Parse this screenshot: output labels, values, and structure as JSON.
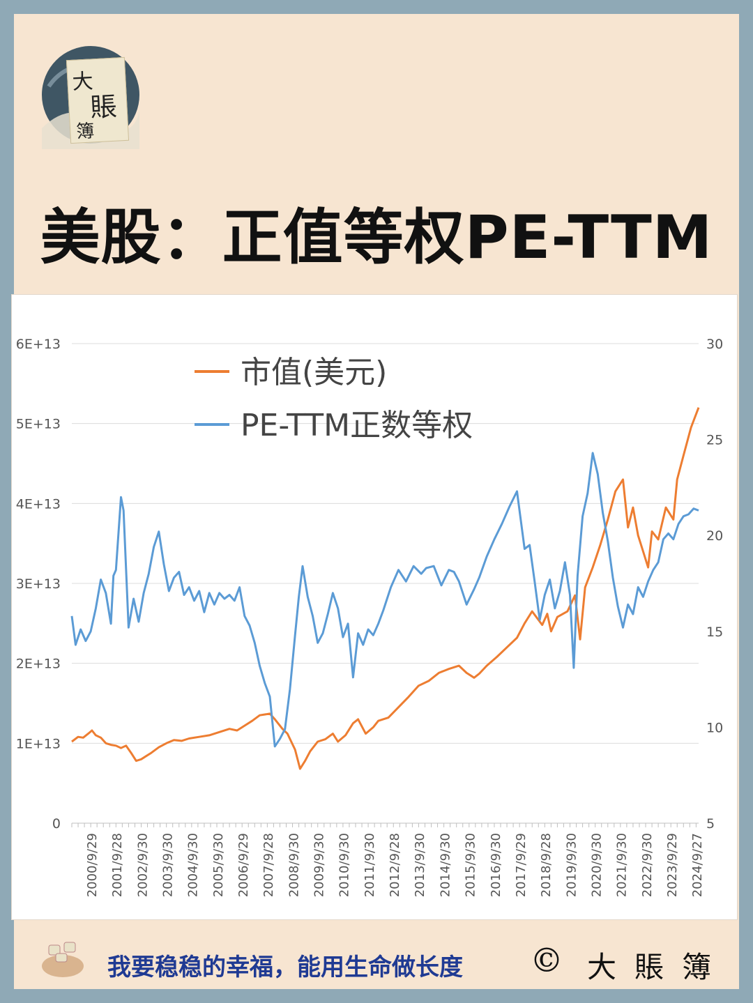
{
  "logo": {
    "chars": [
      "大",
      "賬",
      "簿"
    ]
  },
  "title": "美股：正值等权PE-TTM",
  "chart_data": {
    "type": "line",
    "title": "",
    "xlabel": "",
    "ylabel": "",
    "y_left": {
      "ticks": [
        "0",
        "1E+13",
        "2E+13",
        "3E+13",
        "4E+13",
        "5E+13",
        "6E+13"
      ],
      "range": [
        0,
        60000000000000.0
      ]
    },
    "y_right": {
      "ticks": [
        "5",
        "10",
        "15",
        "20",
        "25",
        "30"
      ],
      "range": [
        5,
        30
      ]
    },
    "categories": [
      "2000/9/29",
      "2001/9/28",
      "2002/9/30",
      "2003/9/30",
      "2004/9/30",
      "2005/9/30",
      "2006/9/29",
      "2007/9/28",
      "2008/9/30",
      "2009/9/30",
      "2010/9/30",
      "2011/9/30",
      "2012/9/28",
      "2013/9/30",
      "2014/9/30",
      "2015/9/30",
      "2016/9/30",
      "2017/9/29",
      "2018/9/28",
      "2019/9/30",
      "2020/9/30",
      "2021/9/30",
      "2022/9/30",
      "2023/9/29",
      "2024/9/27"
    ],
    "x_range": [
      1999.95,
      2024.8
    ],
    "legend_position": "top-center",
    "grid": true,
    "series": [
      {
        "name": "市值(美元)",
        "axis": "left",
        "color": "#ed7d31",
        "x": [
          1999.95,
          2000.2,
          2000.4,
          2000.6,
          2000.75,
          2000.9,
          2001.1,
          2001.3,
          2001.5,
          2001.7,
          2001.9,
          2002.1,
          2002.3,
          2002.5,
          2002.7,
          2002.9,
          2003.1,
          2003.4,
          2003.7,
          2004.0,
          2004.3,
          2004.6,
          2005.0,
          2005.4,
          2005.8,
          2006.2,
          2006.5,
          2006.8,
          2007.1,
          2007.4,
          2007.8,
          2008.0,
          2008.3,
          2008.5,
          2008.8,
          2009.0,
          2009.2,
          2009.4,
          2009.7,
          2010.0,
          2010.3,
          2010.5,
          2010.8,
          2011.1,
          2011.3,
          2011.6,
          2011.9,
          2012.1,
          2012.5,
          2012.9,
          2013.3,
          2013.7,
          2014.1,
          2014.5,
          2014.9,
          2015.3,
          2015.6,
          2015.9,
          2016.1,
          2016.4,
          2016.8,
          2017.2,
          2017.6,
          2017.9,
          2018.2,
          2018.6,
          2018.8,
          2018.95,
          2019.2,
          2019.6,
          2019.9,
          2020.1,
          2020.3,
          2020.6,
          2020.9,
          2021.2,
          2021.5,
          2021.8,
          2022.0,
          2022.2,
          2022.4,
          2022.6,
          2022.8,
          2022.95,
          2023.2,
          2023.5,
          2023.8,
          2023.95,
          2024.2,
          2024.5,
          2024.8
        ],
        "values": [
          10200000000000.0,
          10800000000000.0,
          10700000000000.0,
          11200000000000.0,
          11600000000000.0,
          11000000000000.0,
          10700000000000.0,
          10000000000000.0,
          9800000000000.0,
          9700000000000.0,
          9400000000000.0,
          9700000000000.0,
          8800000000000.0,
          7800000000000.0,
          8000000000000.0,
          8400000000000.0,
          8800000000000.0,
          9500000000000.0,
          10000000000000.0,
          10400000000000.0,
          10300000000000.0,
          10600000000000.0,
          10800000000000.0,
          11000000000000.0,
          11400000000000.0,
          11800000000000.0,
          11600000000000.0,
          12200000000000.0,
          12800000000000.0,
          13500000000000.0,
          13700000000000.0,
          13000000000000.0,
          11800000000000.0,
          11200000000000.0,
          9200000000000.0,
          6800000000000.0,
          7800000000000.0,
          9000000000000.0,
          10200000000000.0,
          10500000000000.0,
          11200000000000.0,
          10200000000000.0,
          11000000000000.0,
          12500000000000.0,
          13000000000000.0,
          11200000000000.0,
          12000000000000.0,
          12800000000000.0,
          13200000000000.0,
          14500000000000.0,
          15800000000000.0,
          17200000000000.0,
          17800000000000.0,
          18800000000000.0,
          19300000000000.0,
          19700000000000.0,
          18800000000000.0,
          18200000000000.0,
          18700000000000.0,
          19700000000000.0,
          20800000000000.0,
          22000000000000.0,
          23200000000000.0,
          25000000000000.0,
          26500000000000.0,
          24800000000000.0,
          26200000000000.0,
          24000000000000.0,
          25800000000000.0,
          26500000000000.0,
          28500000000000.0,
          23000000000000.0,
          29500000000000.0,
          32000000000000.0,
          34800000000000.0,
          38000000000000.0,
          41500000000000.0,
          43000000000000.0,
          37000000000000.0,
          39500000000000.0,
          36000000000000.0,
          34000000000000.0,
          32000000000000.0,
          36500000000000.0,
          35500000000000.0,
          39500000000000.0,
          38000000000000.0,
          43000000000000.0,
          46000000000000.0,
          49500000000000.0,
          52000000000000.0
        ]
      },
      {
        "name": "PE-TTM正数等权",
        "axis": "right",
        "color": "#5b9bd5",
        "x": [
          1999.95,
          2000.1,
          2000.3,
          2000.5,
          2000.7,
          2000.9,
          2001.1,
          2001.3,
          2001.5,
          2001.6,
          2001.7,
          2001.9,
          2002.0,
          2002.2,
          2002.4,
          2002.6,
          2002.8,
          2003.0,
          2003.2,
          2003.4,
          2003.6,
          2003.8,
          2004.0,
          2004.2,
          2004.4,
          2004.6,
          2004.8,
          2005.0,
          2005.2,
          2005.4,
          2005.6,
          2005.8,
          2006.0,
          2006.2,
          2006.4,
          2006.6,
          2006.8,
          2007.0,
          2007.2,
          2007.4,
          2007.6,
          2007.8,
          2008.0,
          2008.2,
          2008.4,
          2008.6,
          2008.8,
          2008.95,
          2009.1,
          2009.3,
          2009.5,
          2009.7,
          2009.9,
          2010.1,
          2010.3,
          2010.5,
          2010.7,
          2010.9,
          2011.1,
          2011.3,
          2011.5,
          2011.7,
          2011.9,
          2012.1,
          2012.3,
          2012.6,
          2012.9,
          2013.2,
          2013.5,
          2013.8,
          2014.0,
          2014.3,
          2014.6,
          2014.9,
          2015.1,
          2015.3,
          2015.6,
          2015.9,
          2016.1,
          2016.4,
          2016.7,
          2017.0,
          2017.3,
          2017.6,
          2017.9,
          2018.1,
          2018.3,
          2018.5,
          2018.7,
          2018.9,
          2019.1,
          2019.3,
          2019.5,
          2019.7,
          2019.85,
          2020.0,
          2020.2,
          2020.4,
          2020.6,
          2020.8,
          2021.0,
          2021.2,
          2021.4,
          2021.6,
          2021.8,
          2022.0,
          2022.2,
          2022.4,
          2022.6,
          2022.8,
          2023.0,
          2023.2,
          2023.4,
          2023.6,
          2023.8,
          2024.0,
          2024.2,
          2024.4,
          2024.6,
          2024.8
        ],
        "values": [
          15.8,
          14.3,
          15.1,
          14.5,
          15.0,
          16.2,
          17.7,
          17.0,
          15.4,
          17.9,
          18.2,
          22.0,
          21.3,
          15.2,
          16.7,
          15.5,
          17.0,
          18.0,
          19.4,
          20.2,
          18.5,
          17.1,
          17.8,
          18.1,
          16.9,
          17.3,
          16.6,
          17.1,
          16.0,
          17.0,
          16.4,
          17.0,
          16.7,
          16.9,
          16.6,
          17.3,
          15.8,
          15.3,
          14.4,
          13.2,
          12.3,
          11.6,
          9.0,
          9.4,
          9.9,
          12.0,
          14.8,
          16.8,
          18.4,
          16.8,
          15.8,
          14.4,
          14.9,
          15.9,
          17.0,
          16.2,
          14.7,
          15.4,
          12.6,
          14.9,
          14.3,
          15.1,
          14.8,
          15.4,
          16.1,
          17.3,
          18.2,
          17.6,
          18.4,
          18.0,
          18.3,
          18.4,
          17.4,
          18.2,
          18.1,
          17.6,
          16.4,
          17.2,
          17.8,
          18.9,
          19.8,
          20.6,
          21.5,
          22.3,
          19.3,
          19.5,
          17.6,
          15.6,
          16.9,
          17.7,
          16.2,
          17.1,
          18.6,
          16.9,
          13.1,
          17.9,
          21.0,
          22.2,
          24.3,
          23.2,
          21.2,
          19.7,
          17.8,
          16.3,
          15.2,
          16.4,
          15.9,
          17.3,
          16.8,
          17.6,
          18.2,
          18.6,
          19.8,
          20.1,
          19.8,
          20.6,
          21.0,
          21.1,
          21.4,
          21.3
        ]
      }
    ]
  },
  "footer": {
    "slogan": "我要稳稳的幸福，能用生命做长度",
    "copyright": "©",
    "brand": "大賬簿"
  }
}
